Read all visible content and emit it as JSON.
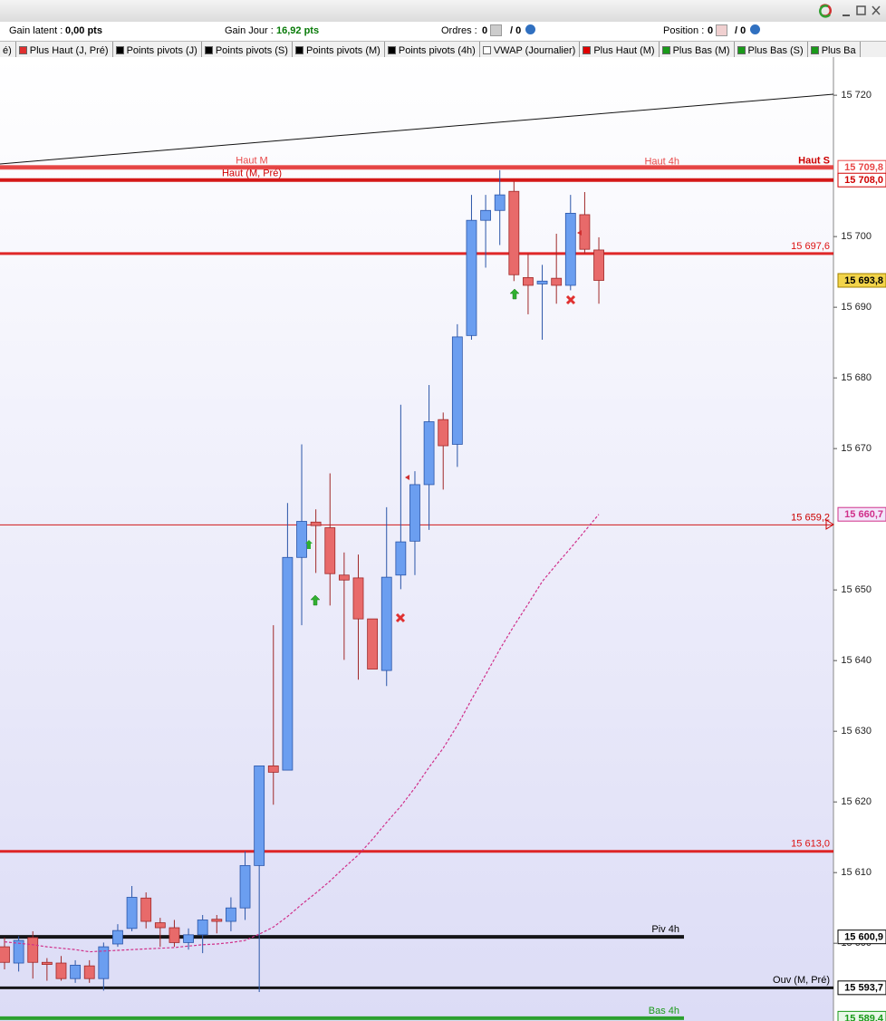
{
  "header": {
    "gain_latent_label": "Gain latent :",
    "gain_latent": "0,00 pts",
    "gain_jour_label": "Gain Jour :",
    "gain_jour": "16,92 pts",
    "ordres_label": "Ordres :",
    "ordres": "0",
    "ordres_total": "/ 0",
    "position_label": "Position :",
    "position": "0",
    "position_total": "/ 0"
  },
  "legend": [
    {
      "label": "é)"
    },
    {
      "label": "Plus Haut (J, Pré)",
      "color": "#e03030"
    },
    {
      "label": "Points pivots (J)",
      "color": "#000000"
    },
    {
      "label": "Points pivots (S)",
      "color": "#000000"
    },
    {
      "label": "Points pivots (M)",
      "color": "#000000"
    },
    {
      "label": "Points pivots (4h)",
      "color": "#000000"
    },
    {
      "label": "VWAP (Journalier)",
      "color": "#ffffff"
    },
    {
      "label": "Plus Haut (M)",
      "color": "#e00000"
    },
    {
      "label": "Plus Bas (M)",
      "color": "#1a9a1a"
    },
    {
      "label": "Plus Bas (S)",
      "color": "#1a9a1a"
    },
    {
      "label": "Plus Ba",
      "color": "#1a9a1a"
    }
  ],
  "chart_data": {
    "type": "candlestick",
    "ylim": [
      15589.0,
      15725.4
    ],
    "yticks": [
      {
        "value": 15720,
        "label": "15 720"
      },
      {
        "value": 15700,
        "label": "15 700"
      },
      {
        "value": 15690,
        "label": "15 690"
      },
      {
        "value": 15680,
        "label": "15 680"
      },
      {
        "value": 15670,
        "label": "15 670"
      },
      {
        "value": 15650,
        "label": "15 650"
      },
      {
        "value": 15640,
        "label": "15 640"
      },
      {
        "value": 15630,
        "label": "15 630"
      },
      {
        "value": 15620,
        "label": "15 620"
      },
      {
        "value": 15610,
        "label": "15 610"
      },
      {
        "value": 15600,
        "label": "15 600"
      }
    ],
    "up_color": "#6b9ef0",
    "down_color": "#e86a6a",
    "open": [
      15599.5,
      15597.2,
      15600.8,
      15597.3,
      15597.2,
      15595.0,
      15596.8,
      15595.0,
      15599.9,
      15602.1,
      15606.4,
      15602.9,
      15602.2,
      15600.1,
      15601.2,
      15603.4,
      15603.1,
      15605.0,
      15611.0,
      15625.1,
      15624.5,
      15654.6,
      15659.6,
      15658.8,
      15652.1,
      15651.7,
      15645.9,
      15638.6,
      15652.1,
      15656.9,
      15664.9,
      15674.1,
      15670.6,
      15686.0,
      15702.3,
      15703.7,
      15706.4,
      15694.2,
      15693.3,
      15694.1,
      15693.1,
      15703.1,
      15698.1
    ],
    "high": [
      15600.8,
      15601.0,
      15601.7,
      15597.9,
      15598.2,
      15597.6,
      15597.6,
      15600.1,
      15602.7,
      15608.1,
      15607.2,
      15603.6,
      15603.3,
      15602.1,
      15604.0,
      15604.0,
      15606.5,
      15613.0,
      15625.1,
      15645.0,
      15662.3,
      15670.6,
      15661.4,
      15666.5,
      15655.3,
      15655.0,
      15645.9,
      15661.7,
      15676.2,
      15666.8,
      15679.0,
      15675.1,
      15687.6,
      15705.9,
      15705.9,
      15709.4,
      15707.8,
      15697.6,
      15696.0,
      15700.4,
      15705.9,
      15706.3,
      15699.9
    ],
    "low": [
      15596.3,
      15596.0,
      15595.0,
      15594.7,
      15594.7,
      15594.4,
      15594.4,
      15593.3,
      15599.5,
      15601.7,
      15602.1,
      15599.5,
      15599.5,
      15599.1,
      15598.6,
      15601.4,
      15601.7,
      15603.3,
      15593.1,
      15619.6,
      15624.5,
      15645.0,
      15652.4,
      15647.8,
      15640.1,
      15637.3,
      15638.8,
      15636.4,
      15650.1,
      15652.1,
      15658.5,
      15664.2,
      15667.4,
      15685.4,
      15695.6,
      15698.8,
      15693.7,
      15689.0,
      15685.4,
      15690.5,
      15692.4,
      15697.6,
      15690.5
    ],
    "close": [
      15597.3,
      15600.4,
      15597.3,
      15597.0,
      15595.0,
      15596.9,
      15595.0,
      15599.5,
      15601.8,
      15606.5,
      15603.1,
      15602.2,
      15600.1,
      15601.2,
      15603.3,
      15603.1,
      15605.0,
      15611.0,
      15625.1,
      15624.2,
      15654.6,
      15659.7,
      15659.1,
      15652.3,
      15651.4,
      15645.9,
      15638.8,
      15651.8,
      15656.8,
      15664.9,
      15673.8,
      15670.4,
      15685.8,
      15702.3,
      15703.7,
      15705.9,
      15694.6,
      15693.1,
      15693.7,
      15693.1,
      15703.3,
      15698.2,
      15693.8
    ],
    "close_label": "15 693,8",
    "vwap": {
      "color": "#d0308a",
      "last_label": "15 660,7",
      "values": [
        15600.2,
        15600.0,
        15599.8,
        15599.5,
        15599.3,
        15599.1,
        15598.8,
        15598.9,
        15599.0,
        15599.1,
        15599.2,
        15599.3,
        15599.4,
        15599.6,
        15599.8,
        15599.9,
        15600.1,
        15600.4,
        15601.3,
        15602.3,
        15603.8,
        15605.5,
        15607.1,
        15608.8,
        15610.7,
        15612.5,
        15614.7,
        15617.1,
        15619.4,
        15622.0,
        15624.9,
        15627.6,
        15630.8,
        15634.5,
        15638.0,
        15641.6,
        15644.9,
        15648.0,
        15651.2,
        15653.6,
        15655.9,
        15658.3,
        15660.7
      ]
    },
    "levels": [
      {
        "line_label": "Haut S",
        "value": 15709.8,
        "color": "#cc0000"
      },
      {
        "line_label": "Haut 4h",
        "value": 15709.8,
        "axis_label": "15 709,8",
        "color": "#e84848"
      },
      {
        "line_label": "Haut M",
        "value": 15709.8,
        "color": "#e84848"
      },
      {
        "line_label": "Haut (M, Pré)",
        "value": 15708.0,
        "axis_label": "15 708,0",
        "color": "#d00000"
      },
      {
        "line_label": "15 697,6",
        "value": 15697.6,
        "color": "#dd1111"
      },
      {
        "line_label": "15 659,2",
        "value": 15659.2,
        "color": "#cc0000"
      },
      {
        "line_label": "15 613,0",
        "value": 15613.0,
        "color": "#dd1111"
      },
      {
        "line_label": "Piv 4h",
        "value": 15600.9,
        "axis_label": "15 600,9",
        "color": "#000000"
      },
      {
        "line_label": "Ouv (M, Pré)",
        "value": 15593.7,
        "axis_label": "15 593,7",
        "color": "#000000"
      },
      {
        "line_label": "Bas 4h",
        "value": 15589.4,
        "axis_label": "15 589,4",
        "color": "#1a9a1a"
      }
    ]
  }
}
